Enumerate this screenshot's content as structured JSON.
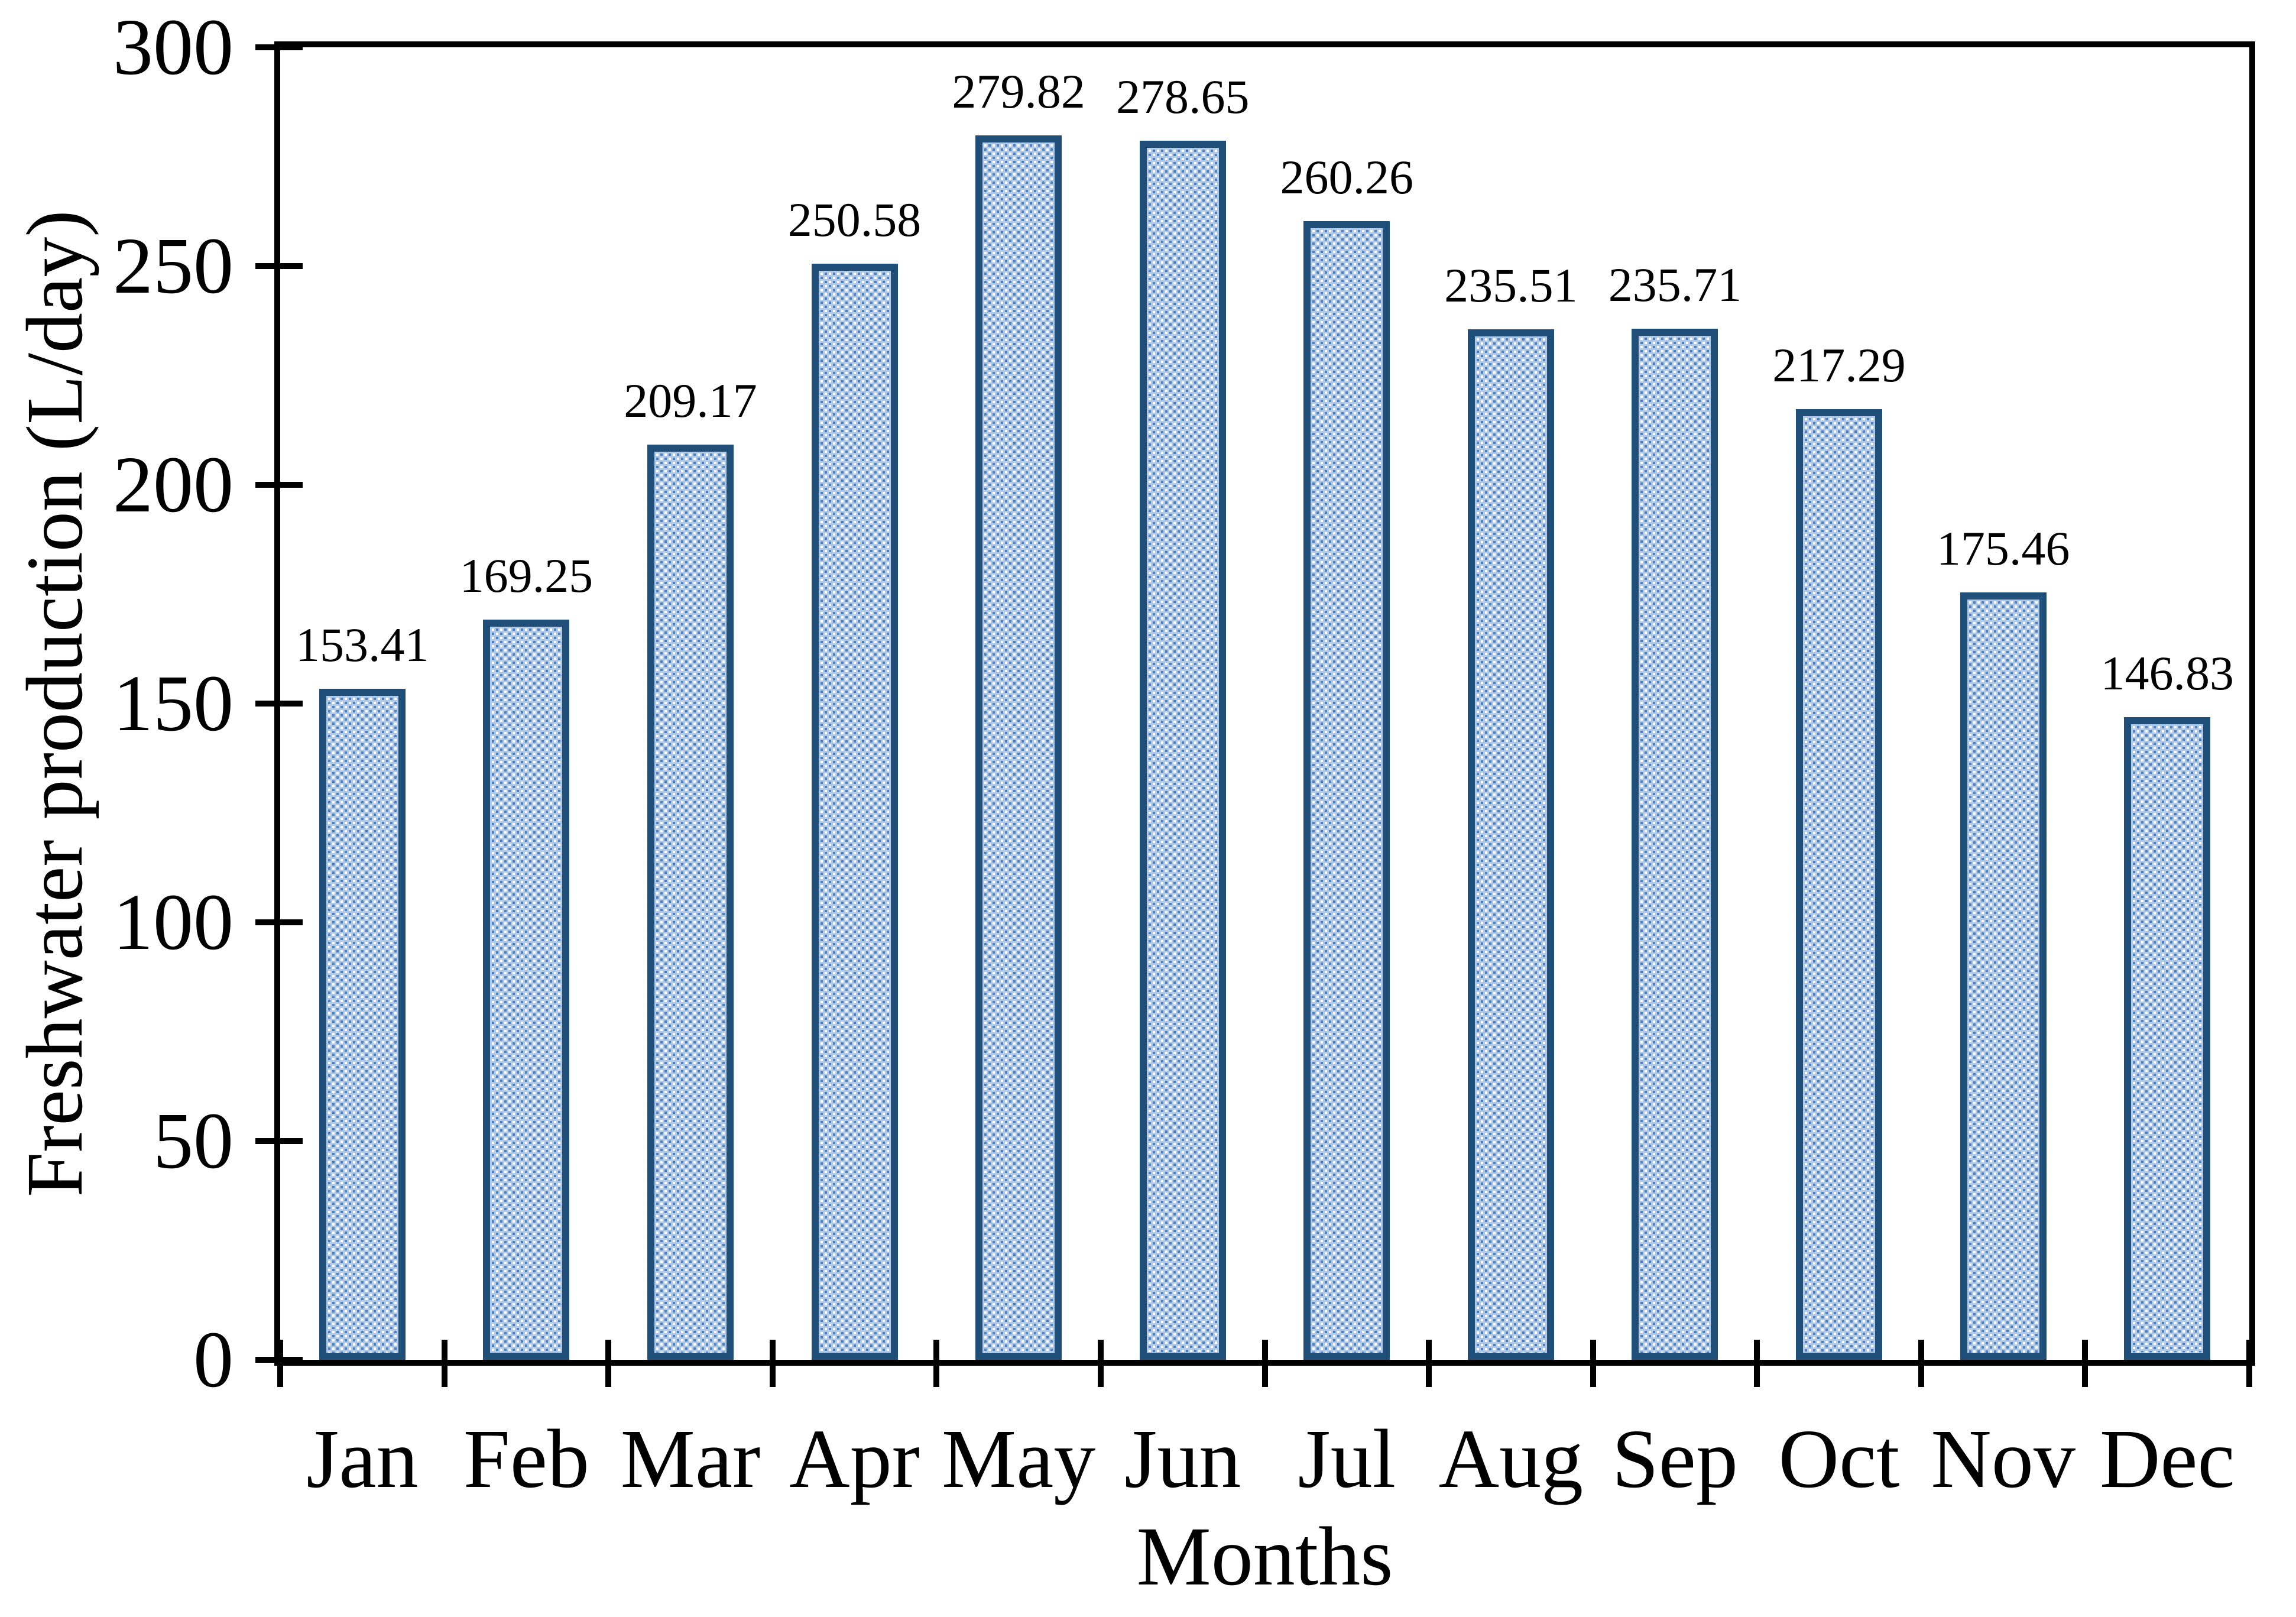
{
  "chart_data": {
    "type": "bar",
    "categories": [
      "Jan",
      "Feb",
      "Mar",
      "Apr",
      "May",
      "Jun",
      "Jul",
      "Aug",
      "Sep",
      "Oct",
      "Nov",
      "Dec"
    ],
    "values": [
      153.41,
      169.25,
      209.17,
      250.58,
      279.82,
      278.65,
      260.26,
      235.51,
      235.71,
      217.29,
      175.46,
      146.83
    ],
    "value_labels": [
      "153.41",
      "169.25",
      "209.17",
      "250.58",
      "279.82",
      "278.65",
      "260.26",
      "235.51",
      "235.71",
      "217.29",
      "175.46",
      "146.83"
    ],
    "xlabel": "Months",
    "ylabel": "Freshwater production (L/day)",
    "ylim": [
      0,
      300
    ],
    "yticks": [
      0,
      50,
      100,
      150,
      200,
      250,
      300
    ],
    "ytick_labels": [
      "0",
      "50",
      "100",
      "150",
      "200",
      "250",
      "300"
    ],
    "grid": false,
    "legend": false,
    "colors": {
      "bar_border": "#1f4e79",
      "bar_lattice": "#b0c9e7",
      "bar_dot_blue": "#4d80bd",
      "bar_dot_white": "#ffffff",
      "axis": "#000000",
      "text": "#000000",
      "background": "#ffffff"
    }
  }
}
